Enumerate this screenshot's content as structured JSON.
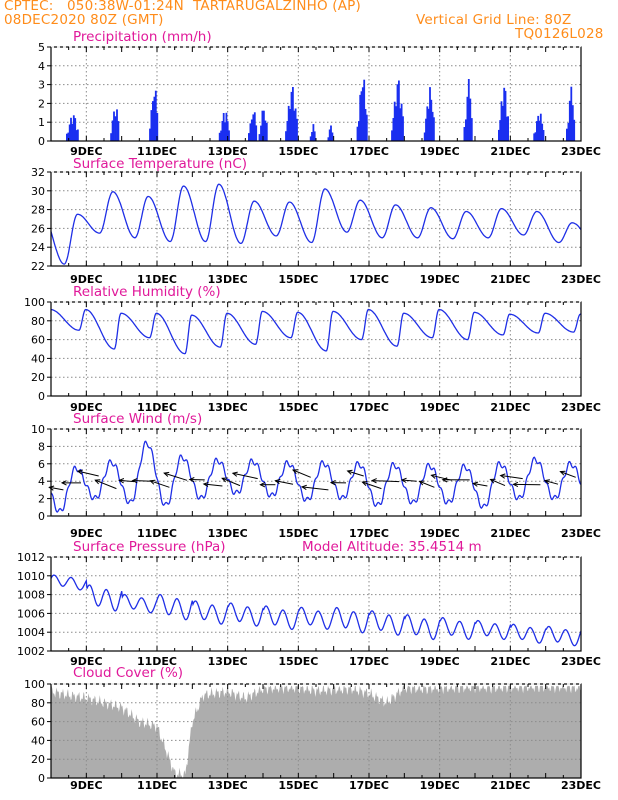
{
  "header": {
    "left_line1": "CPTEC:   050:38W-01:24N  TARTARUGALZINHO (AP)",
    "left_line2": "08DEC2020 80Z (GMT)",
    "right_line1": "Vertical Grid Line: 80Z",
    "right_line2": "TQ0126L028"
  },
  "colors": {
    "header": "#ff8c1a",
    "title": "#e0199a",
    "line": "#1f2fe6",
    "bar": "#1a2ff0",
    "cloud": "#adadad",
    "grid": "#8c8c8c"
  },
  "chart_data": [
    {
      "type": "bar",
      "title": "Precipitation (mm/h)",
      "x_tick_labels": [
        "9DEC",
        "11DEC",
        "13DEC",
        "15DEC",
        "17DEC",
        "19DEC",
        "21DEC",
        "23DEC"
      ],
      "ylim": [
        0,
        5
      ],
      "yticks": [
        0,
        1,
        2,
        3,
        4,
        5
      ],
      "grid": true,
      "events": [
        {
          "day": 8.6,
          "peak": 1.4,
          "width": 0.35
        },
        {
          "day": 9.8,
          "peak": 2.0,
          "width": 0.25
        },
        {
          "day": 10.9,
          "peak": 3.1,
          "width": 0.25
        },
        {
          "day": 12.9,
          "peak": 1.6,
          "width": 0.3
        },
        {
          "day": 13.7,
          "peak": 1.7,
          "width": 0.25
        },
        {
          "day": 14.0,
          "peak": 1.8,
          "width": 0.25
        },
        {
          "day": 14.8,
          "peak": 2.9,
          "width": 0.35
        },
        {
          "day": 15.4,
          "peak": 0.8,
          "width": 0.15
        },
        {
          "day": 15.9,
          "peak": 0.8,
          "width": 0.15
        },
        {
          "day": 16.8,
          "peak": 3.5,
          "width": 0.3
        },
        {
          "day": 17.8,
          "peak": 3.3,
          "width": 0.35
        },
        {
          "day": 18.7,
          "peak": 2.8,
          "width": 0.3
        },
        {
          "day": 19.8,
          "peak": 3.2,
          "width": 0.25
        },
        {
          "day": 20.8,
          "peak": 3.0,
          "width": 0.3
        },
        {
          "day": 21.8,
          "peak": 1.5,
          "width": 0.3
        },
        {
          "day": 22.7,
          "peak": 2.8,
          "width": 0.25
        }
      ]
    },
    {
      "type": "line",
      "title": "Surface Temperature (nC)",
      "x_tick_labels": [
        "9DEC",
        "11DEC",
        "13DEC",
        "15DEC",
        "17DEC",
        "19DEC",
        "21DEC",
        "23DEC"
      ],
      "ylim": [
        22,
        32
      ],
      "yticks": [
        22,
        24,
        26,
        28,
        30,
        32
      ],
      "grid": true,
      "daily_max": [
        27.5,
        29.9,
        29.4,
        30.5,
        30.7,
        28.9,
        28.8,
        30.2,
        29.0,
        28.5,
        28.2,
        27.8,
        28.1,
        27.8,
        26.6
      ],
      "daily_min": [
        22.2,
        25.5,
        25.0,
        24.6,
        24.6,
        24.4,
        25.2,
        24.5,
        25.6,
        25.0,
        25.0,
        24.9,
        25.0,
        25.3,
        24.5
      ]
    },
    {
      "type": "line",
      "title": "Relative Humidity (%)",
      "x_tick_labels": [
        "9DEC",
        "11DEC",
        "13DEC",
        "15DEC",
        "17DEC",
        "19DEC",
        "21DEC",
        "23DEC"
      ],
      "ylim": [
        0,
        100
      ],
      "yticks": [
        0,
        20,
        40,
        60,
        80,
        100
      ],
      "grid": true,
      "daily_high": [
        92,
        88,
        88,
        86,
        88,
        90,
        89,
        90,
        92,
        88,
        92,
        89,
        87,
        88,
        87,
        90
      ],
      "daily_low": [
        70,
        50,
        62,
        45,
        52,
        55,
        62,
        48,
        60,
        53,
        62,
        60,
        65,
        67,
        68,
        72
      ]
    },
    {
      "type": "line",
      "title": "Surface Wind (m/s)",
      "x_tick_labels": [
        "9DEC",
        "11DEC",
        "13DEC",
        "15DEC",
        "17DEC",
        "19DEC",
        "21DEC",
        "23DEC"
      ],
      "ylim": [
        0,
        10
      ],
      "yticks": [
        0,
        2,
        4,
        6,
        8,
        10
      ],
      "grid": true,
      "daily_max": [
        5.5,
        6.2,
        8.4,
        6.8,
        6.4,
        6.3,
        6.1,
        6.1,
        6.0,
        5.9,
        5.8,
        5.7,
        6.0,
        6.5,
        6.0
      ],
      "daily_min": [
        0.5,
        2.0,
        1.5,
        1.2,
        2.0,
        2.6,
        2.3,
        1.8,
        2.0,
        1.2,
        1.5,
        1.5,
        1.0,
        2.0,
        2.0
      ]
    },
    {
      "type": "line",
      "title": "Surface Pressure (hPa)",
      "annotation": "Model Altitude: 35.4514 m",
      "x_tick_labels": [
        "9DEC",
        "11DEC",
        "13DEC",
        "15DEC",
        "17DEC",
        "19DEC",
        "21DEC",
        "23DEC"
      ],
      "ylim": [
        1002,
        1012
      ],
      "yticks": [
        1002,
        1004,
        1006,
        1008,
        1010,
        1012
      ],
      "grid": true,
      "daily_high": [
        1010.5,
        1009.8,
        1008.5,
        1008.8,
        1008.0,
        1007.8,
        1007.5,
        1007.3,
        1007.4,
        1007.0,
        1006.6,
        1006.2,
        1005.8,
        1005.4,
        1005.2
      ],
      "daily_low": [
        1008.2,
        1005.5,
        1005.6,
        1004.6,
        1004.2,
        1004.0,
        1003.6,
        1003.7,
        1003.2,
        1003.0,
        1002.5,
        1002.6,
        1002.7,
        1002.3,
        1002.0
      ]
    },
    {
      "type": "area",
      "title": "Cloud Cover (%)",
      "x_tick_labels": [
        "9DEC",
        "11DEC",
        "13DEC",
        "15DEC",
        "17DEC",
        "19DEC",
        "21DEC",
        "23DEC"
      ],
      "ylim": [
        0,
        100
      ],
      "yticks": [
        0,
        20,
        40,
        60,
        80,
        100
      ],
      "grid": true,
      "days": [
        8.0,
        8.5,
        9.0,
        9.5,
        10.0,
        10.5,
        11.0,
        11.5,
        11.8,
        12.0,
        12.3,
        12.6,
        13.0,
        13.5,
        14.0,
        14.5,
        15.0,
        15.5,
        16.0,
        16.5,
        17.0,
        17.5,
        18.0,
        18.5,
        19.0,
        19.5,
        20.0,
        20.5,
        21.0,
        21.5,
        22.0,
        22.5,
        23.0
      ],
      "values": [
        92,
        88,
        85,
        80,
        75,
        60,
        55,
        5,
        3,
        60,
        88,
        90,
        92,
        85,
        95,
        96,
        96,
        93,
        94,
        95,
        90,
        80,
        96,
        95,
        96,
        96,
        97,
        96,
        97,
        97,
        97,
        97,
        96
      ]
    }
  ]
}
